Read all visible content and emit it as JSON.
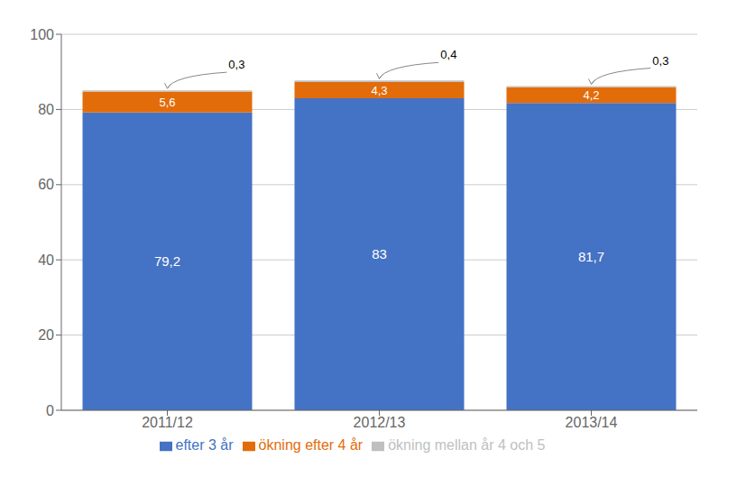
{
  "chart_data": {
    "type": "bar",
    "stacked": true,
    "data_labels": true,
    "grid": true,
    "legend": "bottom",
    "categories": [
      "2011/12",
      "2012/13",
      "2013/14"
    ],
    "series": [
      {
        "name": "efter 3 år",
        "color": "#4472C4",
        "values": [
          79.2,
          83.0,
          81.7
        ],
        "value_labels": [
          "79,2",
          "83",
          "81,7"
        ]
      },
      {
        "name": "ökning efter 4 år",
        "color": "#E36C0A",
        "values": [
          5.6,
          4.3,
          4.2
        ],
        "value_labels": [
          "5,6",
          "4,3",
          "4,2"
        ]
      },
      {
        "name": "ökning mellan år 4 och 5",
        "color": "#BFBFBF",
        "values": [
          0.3,
          0.4,
          0.3
        ],
        "value_labels": [
          "0,3",
          "0,4",
          "0,3"
        ]
      }
    ],
    "ylim": [
      0,
      100
    ],
    "yticks": [
      0,
      20,
      40,
      60,
      80,
      100
    ]
  }
}
